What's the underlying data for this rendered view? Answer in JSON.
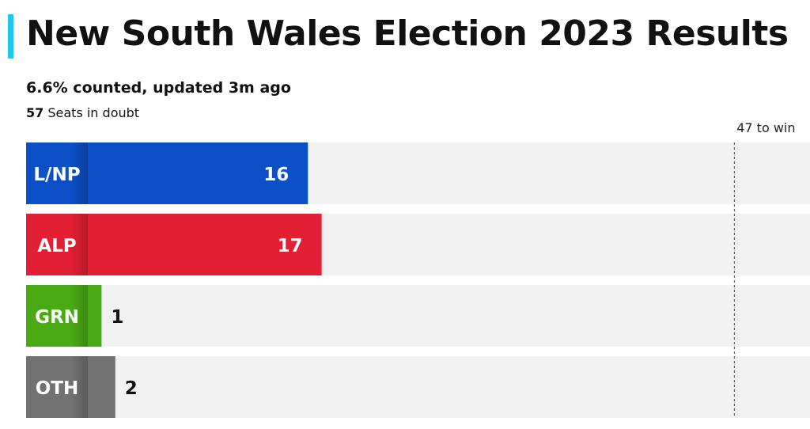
{
  "header": {
    "title": "New South Wales Election 2023 Results",
    "counted": "6.6% counted, updated 3m ago",
    "doubt_count": "57",
    "doubt_label": "Seats in doubt"
  },
  "colors": {
    "accent": "#20c5f0",
    "track": "#f1f1f1"
  },
  "chart_data": {
    "type": "bar",
    "orientation": "horizontal",
    "categories": [
      "L/NP",
      "ALP",
      "GRN",
      "OTH"
    ],
    "values": [
      16,
      17,
      1,
      2
    ],
    "colors": [
      "#0b50c6",
      "#e21f33",
      "#4aaa14",
      "#727272"
    ],
    "label_colors": [
      "#0a3f9c",
      "#b8192a",
      "#3a8a10",
      "#5c5c5c"
    ],
    "xlim": [
      0,
      52.5
    ],
    "threshold": {
      "value": 47,
      "label": "47 to win"
    }
  }
}
